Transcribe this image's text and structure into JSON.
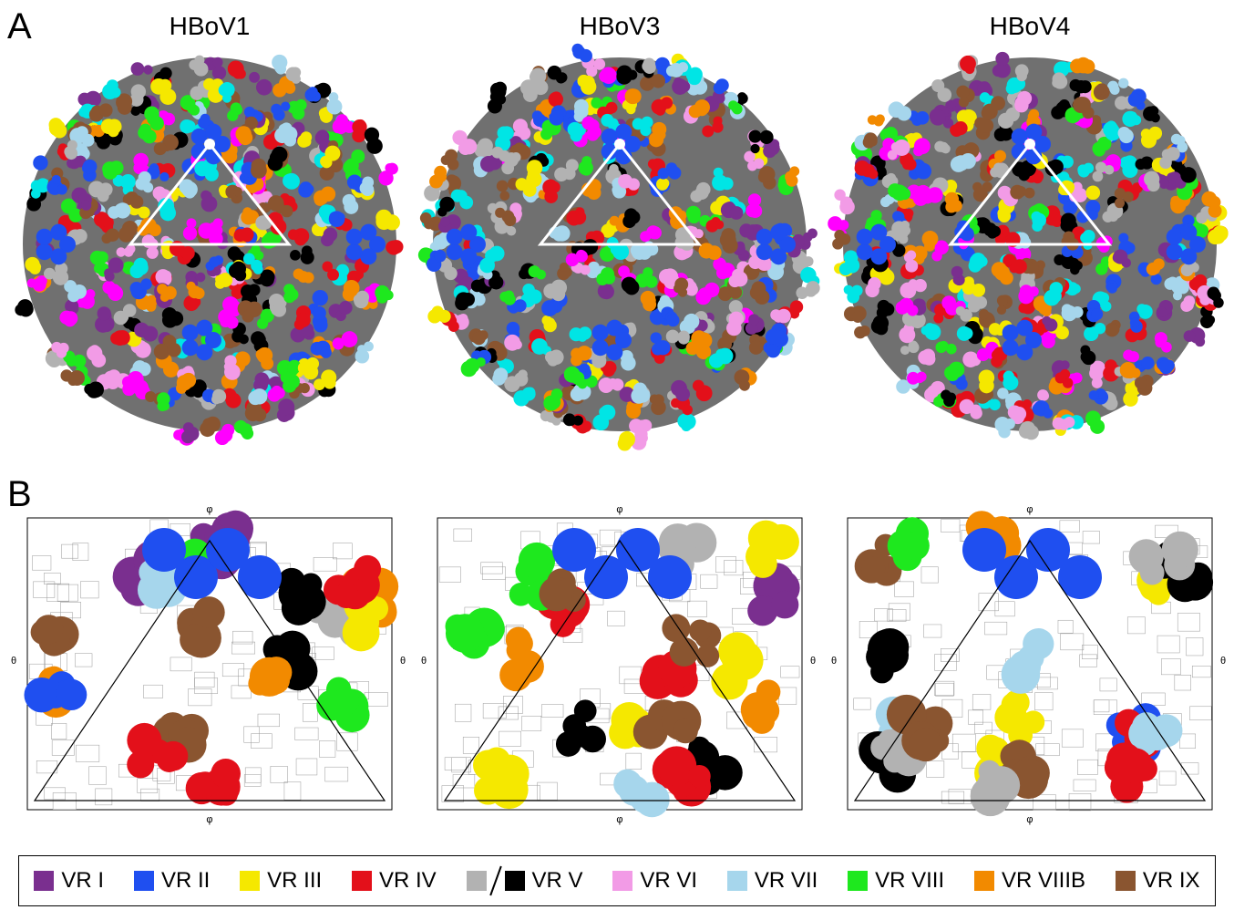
{
  "panels": [
    {
      "label": "A",
      "titles": [
        "HBoV1",
        "HBoV3",
        "HBoV4"
      ]
    },
    {
      "label": "B",
      "axis_x": "φ",
      "axis_y": "θ"
    }
  ],
  "legend": [
    {
      "label": "VR I",
      "colors": [
        "#7a2f8f"
      ]
    },
    {
      "label": "VR II",
      "colors": [
        "#1f4ff0"
      ]
    },
    {
      "label": "VR III",
      "colors": [
        "#f5e800"
      ]
    },
    {
      "label": "VR IV",
      "colors": [
        "#e3101a"
      ]
    },
    {
      "label": "VR V",
      "colors": [
        "#b2b2b2",
        "#000000"
      ]
    },
    {
      "label": "VR VI",
      "colors": [
        "#f29be6"
      ]
    },
    {
      "label": "VR VII",
      "colors": [
        "#a6d6ec"
      ]
    },
    {
      "label": "VR VIII",
      "colors": [
        "#1ee81e"
      ]
    },
    {
      "label": "VR VIIIB",
      "colors": [
        "#f28a00"
      ]
    },
    {
      "label": "VR IX",
      "colors": [
        "#8a5530"
      ]
    }
  ]
}
